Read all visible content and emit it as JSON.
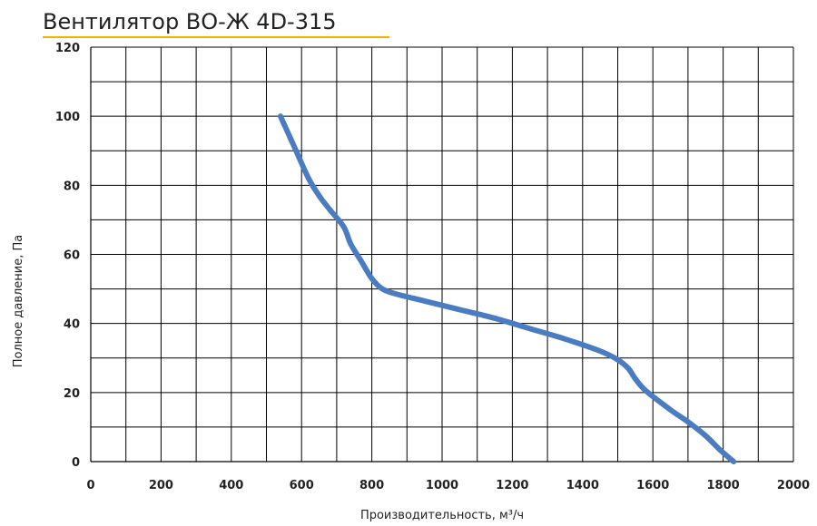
{
  "chart_data": {
    "type": "line",
    "title": "Вентилятор ВО-Ж 4D-315",
    "xlabel": "Производительность, м³/ч",
    "ylabel": "Полное давление, Па",
    "xlim": [
      0,
      2000
    ],
    "ylim": [
      0,
      120
    ],
    "x_ticks": [
      0,
      200,
      400,
      600,
      800,
      1000,
      1200,
      1400,
      1600,
      1800,
      2000
    ],
    "y_ticks": [
      0,
      20,
      40,
      60,
      80,
      100,
      120
    ],
    "grid": true,
    "x_minor_step": 100,
    "y_minor_step": 10,
    "series": [
      {
        "color": "#4a7cc2",
        "x": [
          540,
          580,
          620,
          650,
          680,
          720,
          740,
          770,
          800,
          830,
          870,
          950,
          1050,
          1150,
          1250,
          1350,
          1450,
          1500,
          1530,
          1550,
          1580,
          1650,
          1700,
          1750,
          1790,
          1830
        ],
        "y": [
          100,
          91,
          82,
          77,
          73,
          68,
          63,
          58,
          53,
          50,
          48.5,
          46.5,
          44,
          41.5,
          38.5,
          35.5,
          32,
          29.5,
          27,
          24,
          20.5,
          15,
          11.5,
          7.5,
          3.5,
          0
        ]
      }
    ]
  }
}
